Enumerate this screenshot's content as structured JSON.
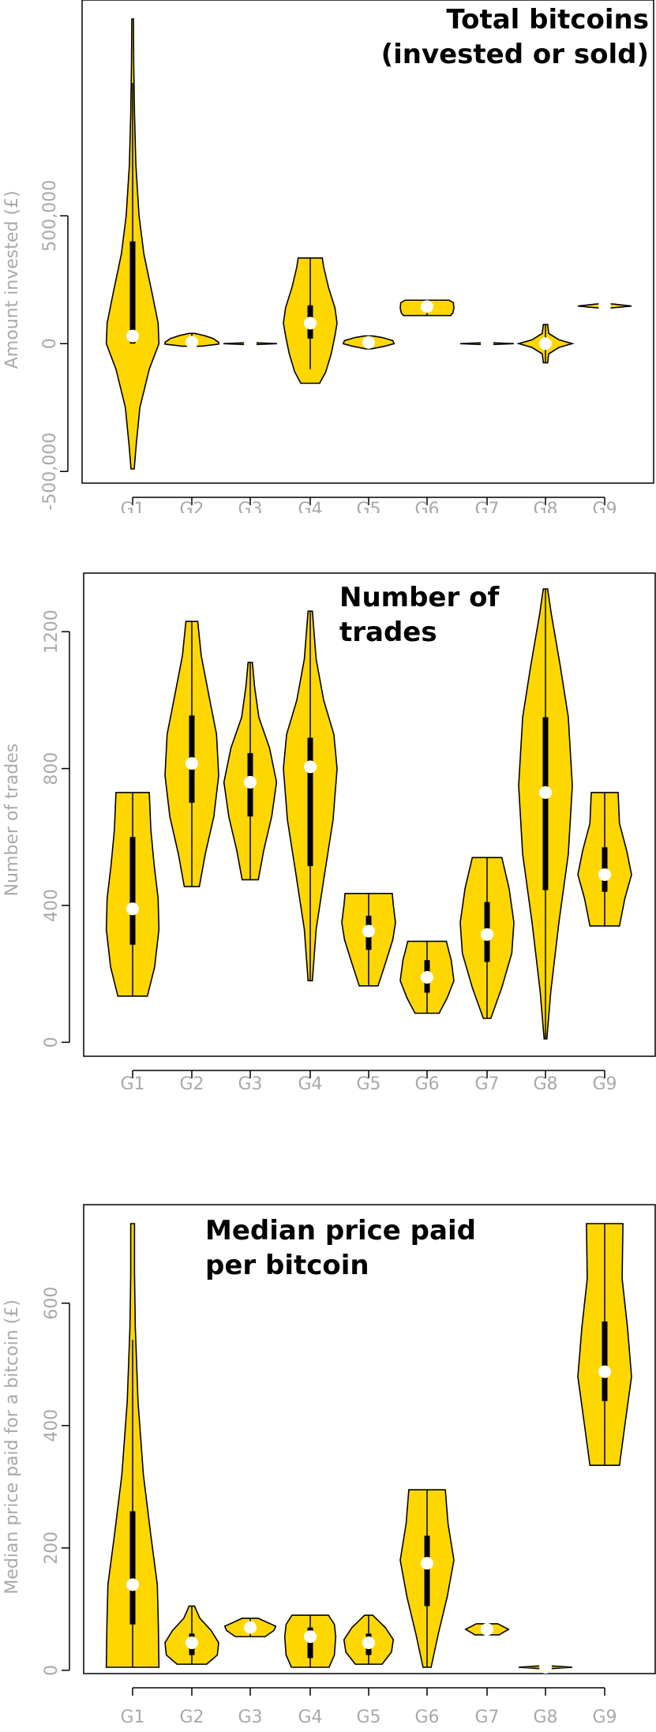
{
  "colors": {
    "fill": "#FFD700",
    "outline": "#000000",
    "box": "#000000",
    "median": "#FFFFFF",
    "axis_text": "#A9A9A9"
  },
  "chart_data": [
    {
      "type": "violin",
      "title": [
        "Total bitcoins",
        "(invested or sold)"
      ],
      "ylabel": "Amount invested (£)",
      "ylim": [
        -500000,
        1000000
      ],
      "yticks": [
        -500000,
        0,
        500000
      ],
      "ytick_labels": [
        "-500,000",
        "0",
        "500,000"
      ],
      "categories": [
        "G1",
        "G2",
        "G3",
        "G4",
        "G5",
        "G6",
        "G7",
        "G8",
        "G9"
      ],
      "groups": [
        {
          "min": -490000,
          "max": 1270000,
          "median": 30000,
          "q1": 0,
          "q3": 400000,
          "wlo": 0,
          "whi": 1020000,
          "profile": [
            [
              -490000,
              0.06
            ],
            [
              -400000,
              0.13
            ],
            [
              -250000,
              0.27
            ],
            [
              -100000,
              0.62
            ],
            [
              0,
              0.98
            ],
            [
              80000,
              0.95
            ],
            [
              200000,
              0.72
            ],
            [
              350000,
              0.42
            ],
            [
              500000,
              0.24
            ],
            [
              700000,
              0.12
            ],
            [
              900000,
              0.07
            ],
            [
              1100000,
              0.04
            ],
            [
              1270000,
              0.03
            ]
          ]
        },
        {
          "min": -10000,
          "max": 40000,
          "median": 5000,
          "q1": -5000,
          "q3": 15000,
          "wlo": -10000,
          "whi": 40000,
          "profile": [
            [
              -10000,
              0.35
            ],
            [
              -2000,
              1.0
            ],
            [
              5000,
              1.0
            ],
            [
              20000,
              0.8
            ],
            [
              32000,
              0.45
            ],
            [
              40000,
              0.1
            ]
          ]
        },
        {
          "min": -4000,
          "max": 4000,
          "median": 0,
          "q1": -1000,
          "q3": 1000,
          "wlo": -4000,
          "whi": 4000,
          "profile": [
            [
              -4000,
              0.1
            ],
            [
              0,
              1.0
            ],
            [
              4000,
              0.1
            ]
          ]
        },
        {
          "min": -155000,
          "max": 335000,
          "median": 80000,
          "q1": 20000,
          "q3": 150000,
          "wlo": -100000,
          "whi": 335000,
          "profile": [
            [
              -155000,
              0.35
            ],
            [
              -110000,
              0.58
            ],
            [
              -40000,
              0.78
            ],
            [
              20000,
              0.9
            ],
            [
              80000,
              1.0
            ],
            [
              140000,
              0.92
            ],
            [
              220000,
              0.68
            ],
            [
              300000,
              0.5
            ],
            [
              335000,
              0.45
            ]
          ]
        },
        {
          "min": -20000,
          "max": 30000,
          "median": 5000,
          "q1": -5000,
          "q3": 15000,
          "wlo": -20000,
          "whi": 30000,
          "profile": [
            [
              -20000,
              0.12
            ],
            [
              -10000,
              0.6
            ],
            [
              0,
              0.95
            ],
            [
              12000,
              0.9
            ],
            [
              24000,
              0.5
            ],
            [
              30000,
              0.15
            ]
          ]
        },
        {
          "min": 110000,
          "max": 170000,
          "median": 145000,
          "q1": 130000,
          "q3": 160000,
          "wlo": 110000,
          "whi": 170000,
          "profile": [
            [
              110000,
              0.88
            ],
            [
              120000,
              0.96
            ],
            [
              140000,
              1.0
            ],
            [
              160000,
              0.98
            ],
            [
              170000,
              0.82
            ]
          ]
        },
        {
          "min": -4000,
          "max": 4000,
          "median": 0,
          "q1": -1000,
          "q3": 1000,
          "wlo": -4000,
          "whi": 4000,
          "profile": [
            [
              -4000,
              0.1
            ],
            [
              0,
              1.0
            ],
            [
              4000,
              0.1
            ]
          ]
        },
        {
          "min": -75000,
          "max": 75000,
          "median": 0,
          "q1": -5000,
          "q3": 5000,
          "wlo": -75000,
          "whi": 75000,
          "profile": [
            [
              -75000,
              0.08
            ],
            [
              -40000,
              0.12
            ],
            [
              -15000,
              0.5
            ],
            [
              0,
              1.0
            ],
            [
              15000,
              0.5
            ],
            [
              40000,
              0.12
            ],
            [
              75000,
              0.08
            ]
          ]
        },
        {
          "min": 140000,
          "max": 155000,
          "median": 148000,
          "q1": 144000,
          "q3": 152000,
          "wlo": 140000,
          "whi": 155000,
          "profile": [
            [
              140000,
              0.3
            ],
            [
              147000,
              1.0
            ],
            [
              155000,
              0.3
            ]
          ]
        }
      ]
    },
    {
      "type": "violin",
      "title": [
        "Number of",
        "trades"
      ],
      "ylabel": "Number of trades",
      "ylim": [
        0,
        1300
      ],
      "yticks": [
        0,
        400,
        800,
        1200
      ],
      "ytick_labels": [
        "0",
        "400",
        "800",
        "1200"
      ],
      "categories": [
        "G1",
        "G2",
        "G3",
        "G4",
        "G5",
        "G6",
        "G7",
        "G8",
        "G9"
      ],
      "groups": [
        {
          "min": 135,
          "max": 730,
          "median": 390,
          "q1": 285,
          "q3": 600,
          "wlo": 135,
          "whi": 730,
          "profile": [
            [
              135,
              0.55
            ],
            [
              220,
              0.82
            ],
            [
              330,
              0.98
            ],
            [
              420,
              0.95
            ],
            [
              520,
              0.8
            ],
            [
              620,
              0.68
            ],
            [
              730,
              0.62
            ]
          ]
        },
        {
          "min": 455,
          "max": 1230,
          "median": 815,
          "q1": 700,
          "q3": 955,
          "wlo": 455,
          "whi": 1230,
          "profile": [
            [
              455,
              0.28
            ],
            [
              550,
              0.5
            ],
            [
              660,
              0.82
            ],
            [
              780,
              1.0
            ],
            [
              900,
              0.92
            ],
            [
              1020,
              0.62
            ],
            [
              1130,
              0.35
            ],
            [
              1230,
              0.22
            ]
          ]
        },
        {
          "min": 475,
          "max": 1110,
          "median": 760,
          "q1": 660,
          "q3": 845,
          "wlo": 475,
          "whi": 1110,
          "profile": [
            [
              475,
              0.3
            ],
            [
              560,
              0.5
            ],
            [
              660,
              0.8
            ],
            [
              760,
              0.98
            ],
            [
              860,
              0.72
            ],
            [
              950,
              0.32
            ],
            [
              1040,
              0.16
            ],
            [
              1110,
              0.08
            ]
          ]
        },
        {
          "min": 180,
          "max": 1260,
          "median": 805,
          "q1": 515,
          "q3": 890,
          "wlo": 180,
          "whi": 1260,
          "profile": [
            [
              180,
              0.08
            ],
            [
              330,
              0.22
            ],
            [
              500,
              0.55
            ],
            [
              650,
              0.85
            ],
            [
              800,
              1.0
            ],
            [
              900,
              0.88
            ],
            [
              1000,
              0.5
            ],
            [
              1120,
              0.22
            ],
            [
              1260,
              0.08
            ]
          ]
        },
        {
          "min": 165,
          "max": 435,
          "median": 325,
          "q1": 270,
          "q3": 370,
          "wlo": 165,
          "whi": 435,
          "profile": [
            [
              165,
              0.35
            ],
            [
              230,
              0.62
            ],
            [
              300,
              0.9
            ],
            [
              350,
              1.0
            ],
            [
              400,
              0.92
            ],
            [
              435,
              0.88
            ]
          ]
        },
        {
          "min": 85,
          "max": 295,
          "median": 190,
          "q1": 145,
          "q3": 240,
          "wlo": 85,
          "whi": 295,
          "profile": [
            [
              85,
              0.45
            ],
            [
              130,
              0.75
            ],
            [
              180,
              1.0
            ],
            [
              240,
              0.9
            ],
            [
              270,
              0.8
            ],
            [
              295,
              0.72
            ]
          ]
        },
        {
          "min": 70,
          "max": 540,
          "median": 315,
          "q1": 235,
          "q3": 410,
          "wlo": 70,
          "whi": 540,
          "profile": [
            [
              70,
              0.14
            ],
            [
              160,
              0.55
            ],
            [
              260,
              0.92
            ],
            [
              350,
              1.0
            ],
            [
              450,
              0.82
            ],
            [
              540,
              0.55
            ]
          ]
        },
        {
          "min": 10,
          "max": 1325,
          "median": 730,
          "q1": 445,
          "q3": 950,
          "wlo": 10,
          "whi": 1325,
          "profile": [
            [
              10,
              0.05
            ],
            [
              150,
              0.2
            ],
            [
              350,
              0.5
            ],
            [
              550,
              0.85
            ],
            [
              750,
              1.0
            ],
            [
              950,
              0.85
            ],
            [
              1100,
              0.55
            ],
            [
              1250,
              0.22
            ],
            [
              1325,
              0.08
            ]
          ]
        },
        {
          "min": 340,
          "max": 730,
          "median": 490,
          "q1": 440,
          "q3": 570,
          "wlo": 340,
          "whi": 730,
          "profile": [
            [
              340,
              0.55
            ],
            [
              420,
              0.75
            ],
            [
              490,
              1.0
            ],
            [
              560,
              0.82
            ],
            [
              640,
              0.55
            ],
            [
              730,
              0.5
            ]
          ]
        }
      ]
    },
    {
      "type": "violin",
      "title": [
        "Median price paid",
        "per bitcoin"
      ],
      "ylabel": "Median price paid for a bitcoin (£)",
      "ylim": [
        0,
        730
      ],
      "yticks": [
        0,
        200,
        400,
        600
      ],
      "ytick_labels": [
        "0",
        "200",
        "400",
        "600"
      ],
      "categories": [
        "G1",
        "G2",
        "G3",
        "G4",
        "G5",
        "G6",
        "G7",
        "G8",
        "G9"
      ],
      "groups": [
        {
          "min": 5,
          "max": 730,
          "median": 140,
          "q1": 75,
          "q3": 260,
          "wlo": 5,
          "whi": 540,
          "profile": [
            [
              5,
              0.98
            ],
            [
              70,
              0.96
            ],
            [
              140,
              0.92
            ],
            [
              220,
              0.68
            ],
            [
              320,
              0.4
            ],
            [
              440,
              0.2
            ],
            [
              560,
              0.1
            ],
            [
              650,
              0.07
            ],
            [
              730,
              0.07
            ]
          ]
        },
        {
          "min": 10,
          "max": 105,
          "median": 45,
          "q1": 25,
          "q3": 60,
          "wlo": 10,
          "whi": 105,
          "profile": [
            [
              10,
              0.55
            ],
            [
              25,
              0.95
            ],
            [
              45,
              1.0
            ],
            [
              65,
              0.72
            ],
            [
              85,
              0.3
            ],
            [
              105,
              0.1
            ]
          ]
        },
        {
          "min": 55,
          "max": 85,
          "median": 70,
          "q1": 65,
          "q3": 75,
          "wlo": 55,
          "whi": 85,
          "profile": [
            [
              55,
              0.55
            ],
            [
              65,
              0.88
            ],
            [
              72,
              0.95
            ],
            [
              80,
              0.55
            ],
            [
              85,
              0.3
            ]
          ]
        },
        {
          "min": 5,
          "max": 90,
          "median": 55,
          "q1": 20,
          "q3": 70,
          "wlo": 5,
          "whi": 90,
          "profile": [
            [
              5,
              0.7
            ],
            [
              25,
              0.9
            ],
            [
              55,
              0.95
            ],
            [
              75,
              0.9
            ],
            [
              90,
              0.68
            ]
          ]
        },
        {
          "min": 10,
          "max": 90,
          "median": 45,
          "q1": 25,
          "q3": 60,
          "wlo": 10,
          "whi": 90,
          "profile": [
            [
              10,
              0.5
            ],
            [
              30,
              0.85
            ],
            [
              50,
              0.92
            ],
            [
              70,
              0.62
            ],
            [
              90,
              0.15
            ]
          ]
        },
        {
          "min": 5,
          "max": 295,
          "median": 175,
          "q1": 105,
          "q3": 220,
          "wlo": 5,
          "whi": 295,
          "profile": [
            [
              5,
              0.15
            ],
            [
              60,
              0.42
            ],
            [
              120,
              0.75
            ],
            [
              180,
              1.0
            ],
            [
              240,
              0.78
            ],
            [
              295,
              0.68
            ]
          ]
        },
        {
          "min": 58,
          "max": 76,
          "median": 67,
          "q1": 63,
          "q3": 70,
          "wlo": 58,
          "whi": 76,
          "profile": [
            [
              58,
              0.45
            ],
            [
              67,
              0.8
            ],
            [
              76,
              0.4
            ]
          ]
        },
        {
          "min": 3,
          "max": 7,
          "median": 5,
          "q1": 4,
          "q3": 6,
          "wlo": 3,
          "whi": 7,
          "profile": [
            [
              3,
              0.3
            ],
            [
              5,
              1.0
            ],
            [
              7,
              0.3
            ]
          ]
        },
        {
          "min": 335,
          "max": 730,
          "median": 488,
          "q1": 440,
          "q3": 570,
          "wlo": 335,
          "whi": 730,
          "profile": [
            [
              335,
              0.55
            ],
            [
              400,
              0.75
            ],
            [
              480,
              1.0
            ],
            [
              560,
              0.85
            ],
            [
              640,
              0.65
            ],
            [
              730,
              0.68
            ]
          ]
        }
      ]
    }
  ]
}
